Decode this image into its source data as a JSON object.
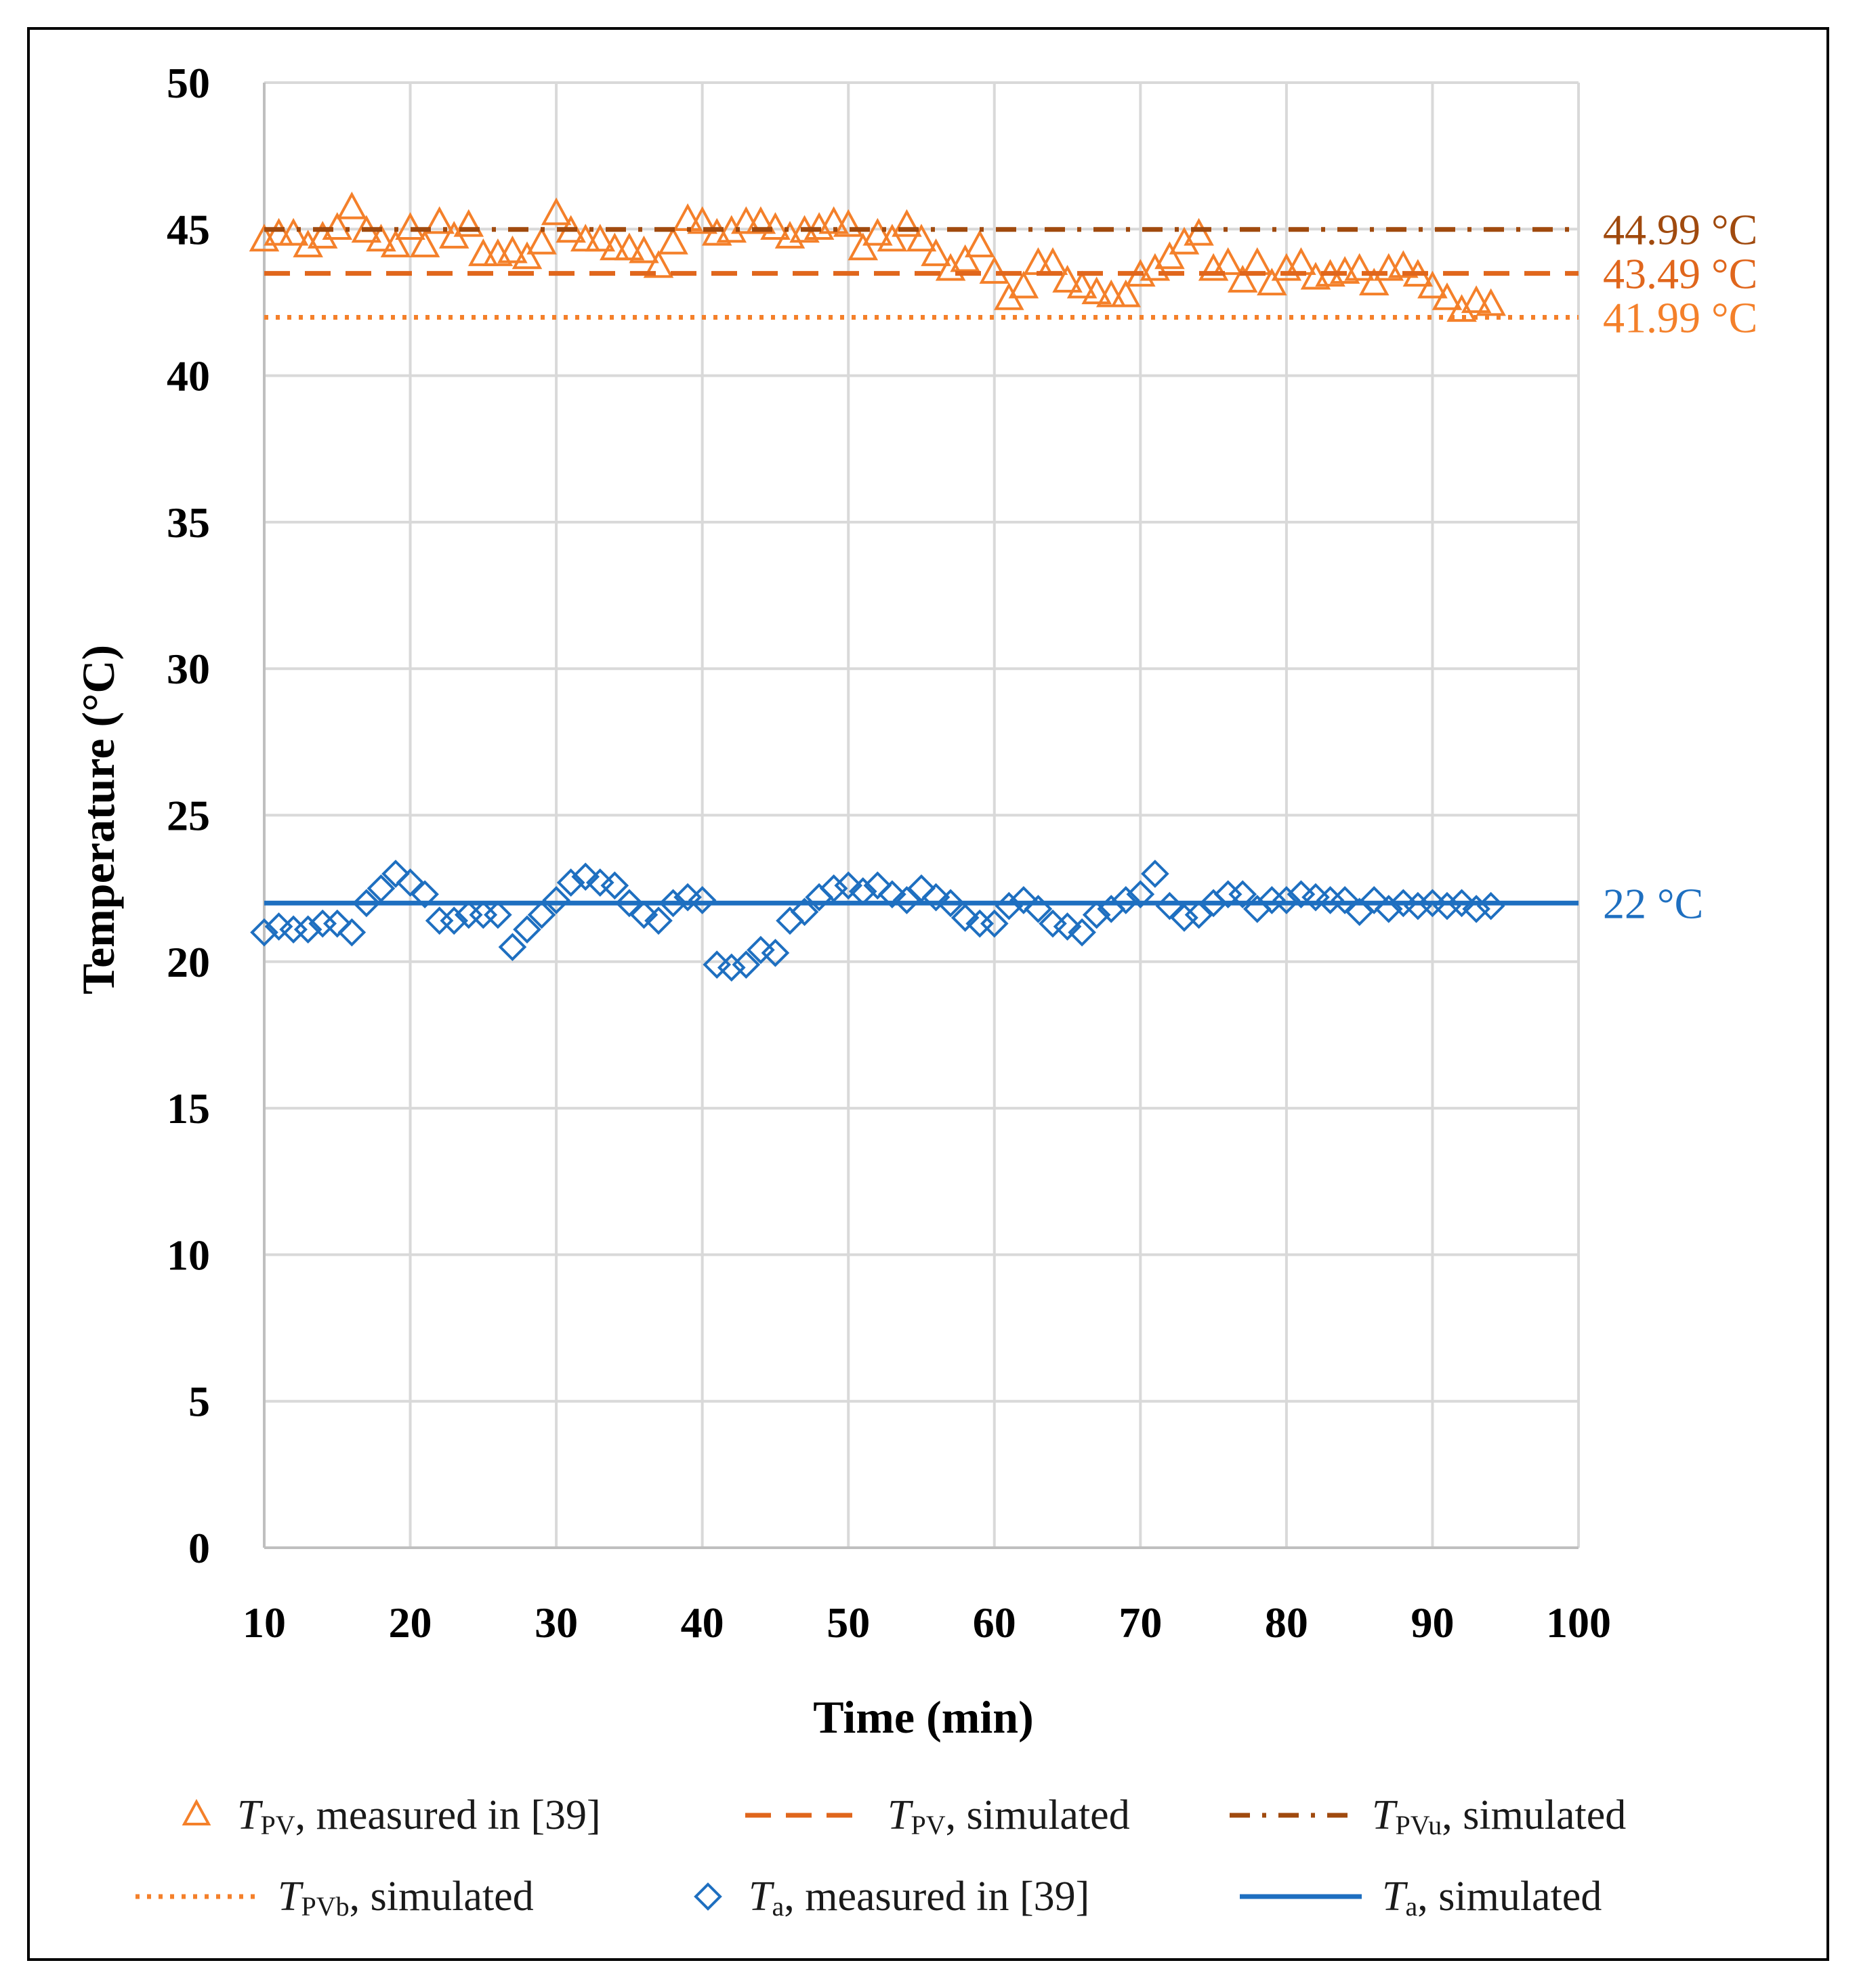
{
  "chart_data": {
    "type": "line",
    "title": "",
    "xlabel": "Time (min)",
    "ylabel": "Temperature (°C)",
    "xlim": [
      10,
      100
    ],
    "ylim": [
      0,
      50
    ],
    "xticks": [
      10,
      20,
      30,
      40,
      50,
      60,
      70,
      80,
      90,
      100
    ],
    "yticks": [
      0,
      5,
      10,
      15,
      20,
      25,
      30,
      35,
      40,
      45,
      50
    ],
    "grid": true,
    "legend_position": "bottom",
    "colors": {
      "tpv": "#f4802a",
      "tpv_sim": "#e0661c",
      "tpvu": "#a04a0e",
      "tpvb": "#f4802a",
      "ta": "#1e6fc0"
    },
    "annotations": [
      {
        "text": "44.99 °C",
        "y": 44.99,
        "color": "#a04a0e"
      },
      {
        "text": "43.49 °C",
        "y": 43.49,
        "color": "#e0661c"
      },
      {
        "text": "41.99 °C",
        "y": 41.99,
        "color": "#f4802a"
      },
      {
        "text": "22 °C",
        "y": 22,
        "color": "#1e6fc0"
      }
    ],
    "legend": [
      {
        "symbol": "T",
        "sub": "PV",
        "rest": ", measured in [39]",
        "marker": "triangle",
        "color": "#f4802a"
      },
      {
        "symbol": "T",
        "sub": "PV",
        "rest": ", simulated",
        "marker": "dash",
        "color": "#e0661c"
      },
      {
        "symbol": "T",
        "sub": "PVu",
        "rest": ", simulated",
        "marker": "dashdot",
        "color": "#a04a0e"
      },
      {
        "symbol": "T",
        "sub": "PVb",
        "rest": ", simulated",
        "marker": "dot",
        "color": "#f4802a"
      },
      {
        "symbol": "T",
        "sub": "a",
        "rest": ", measured in [39]",
        "marker": "diamond",
        "color": "#1e6fc0"
      },
      {
        "symbol": "T",
        "sub": "a",
        "rest": ", simulated",
        "marker": "solid",
        "color": "#1e6fc0"
      }
    ],
    "series": [
      {
        "name": "TPV, measured in [39]",
        "style": "triangle",
        "x": [
          10,
          11,
          12,
          13,
          14,
          15,
          16,
          17,
          18,
          19,
          20,
          21,
          22,
          23,
          24,
          25,
          26,
          27,
          28,
          29,
          30,
          31,
          32,
          33,
          34,
          35,
          36,
          37,
          38,
          39,
          40,
          41,
          42,
          43,
          44,
          45,
          46,
          47,
          48,
          49,
          50,
          51,
          52,
          53,
          54,
          55,
          56,
          57,
          58,
          59,
          60,
          61,
          62,
          63,
          64,
          65,
          66,
          67,
          68,
          69,
          70,
          71,
          72,
          73,
          74,
          75,
          76,
          77,
          78,
          79,
          80,
          81,
          82,
          83,
          84,
          85,
          86,
          87,
          88,
          89,
          90,
          91,
          92,
          93,
          94
        ],
        "y": [
          44.6,
          44.8,
          44.8,
          44.4,
          44.7,
          45.0,
          45.7,
          44.9,
          44.6,
          44.4,
          45.0,
          44.4,
          45.2,
          44.7,
          45.1,
          44.1,
          44.1,
          44.2,
          44.0,
          44.5,
          45.5,
          44.9,
          44.6,
          44.6,
          44.3,
          44.3,
          44.2,
          43.7,
          44.5,
          45.3,
          45.2,
          44.8,
          44.9,
          45.2,
          45.2,
          45.0,
          44.7,
          44.9,
          45.0,
          45.2,
          45.1,
          44.3,
          44.8,
          44.6,
          45.1,
          44.6,
          44.1,
          43.6,
          43.9,
          44.4,
          43.5,
          42.6,
          43.0,
          43.8,
          43.8,
          43.2,
          43.0,
          42.8,
          42.7,
          42.7,
          43.4,
          43.6,
          44.0,
          44.5,
          44.8,
          43.6,
          43.8,
          43.2,
          43.8,
          43.1,
          43.6,
          43.8,
          43.3,
          43.4,
          43.5,
          43.6,
          43.1,
          43.6,
          43.7,
          43.4,
          43.0,
          42.6,
          42.2,
          42.5,
          42.4
        ]
      },
      {
        "name": "TPV, simulated",
        "style": "dash",
        "x": [
          10,
          100
        ],
        "y": [
          43.49,
          43.49
        ]
      },
      {
        "name": "TPVu, simulated",
        "style": "dashdot",
        "x": [
          10,
          100
        ],
        "y": [
          44.99,
          44.99
        ]
      },
      {
        "name": "TPVb, simulated",
        "style": "dot",
        "x": [
          10,
          100
        ],
        "y": [
          41.99,
          41.99
        ]
      },
      {
        "name": "Ta, measured in [39]",
        "style": "diamond",
        "x": [
          10,
          11,
          12,
          13,
          14,
          15,
          16,
          17,
          18,
          19,
          20,
          21,
          22,
          23,
          24,
          25,
          26,
          27,
          28,
          29,
          30,
          31,
          32,
          33,
          34,
          35,
          36,
          37,
          38,
          39,
          40,
          41,
          42,
          43,
          44,
          45,
          46,
          47,
          48,
          49,
          50,
          51,
          52,
          53,
          54,
          55,
          56,
          57,
          58,
          59,
          60,
          61,
          62,
          63,
          64,
          65,
          66,
          67,
          68,
          69,
          70,
          71,
          72,
          73,
          74,
          75,
          76,
          77,
          78,
          79,
          80,
          81,
          82,
          83,
          84,
          85,
          86,
          87,
          88,
          89,
          90,
          91,
          92,
          93,
          94
        ],
        "y": [
          21.0,
          21.2,
          21.1,
          21.1,
          21.3,
          21.3,
          21.0,
          22.0,
          22.5,
          23.0,
          22.7,
          22.3,
          21.4,
          21.4,
          21.6,
          21.6,
          21.6,
          20.5,
          21.1,
          21.6,
          22.1,
          22.7,
          22.9,
          22.7,
          22.6,
          22.0,
          21.6,
          21.4,
          22.0,
          22.2,
          22.1,
          19.9,
          19.8,
          19.9,
          20.4,
          20.3,
          21.4,
          21.7,
          22.2,
          22.5,
          22.6,
          22.4,
          22.6,
          22.3,
          22.1,
          22.5,
          22.2,
          22.0,
          21.5,
          21.3,
          21.3,
          21.9,
          22.1,
          21.8,
          21.3,
          21.2,
          21.0,
          21.6,
          21.8,
          22.1,
          22.3,
          23.0,
          21.9,
          21.5,
          21.6,
          22.0,
          22.3,
          22.3,
          21.8,
          22.1,
          22.1,
          22.3,
          22.2,
          22.1,
          22.1,
          21.7,
          22.1,
          21.8,
          22.0,
          21.9,
          22.0,
          21.9,
          22.0,
          21.8,
          21.9
        ]
      },
      {
        "name": "Ta, simulated",
        "style": "solid",
        "x": [
          10,
          100
        ],
        "y": [
          22,
          22
        ]
      }
    ]
  }
}
